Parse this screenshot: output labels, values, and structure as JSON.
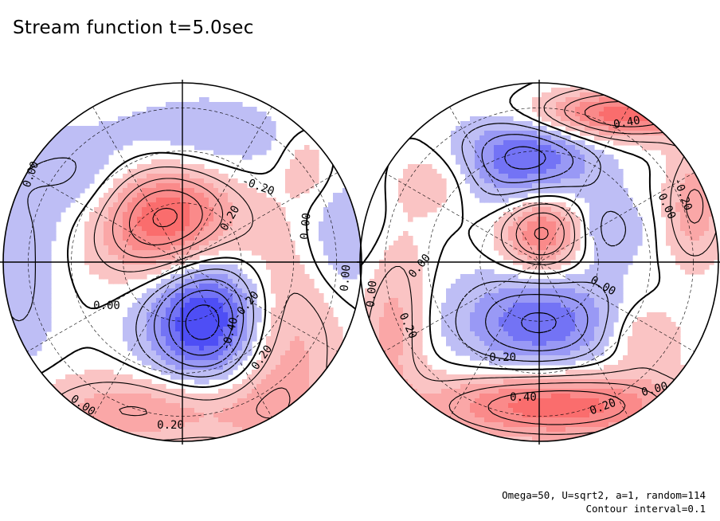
{
  "title": "Stream function t=5.0sec",
  "footer": {
    "params": "Omega=50, U=sqrt2, a=1, random=114",
    "contour_interval": "Contour interval=0.1"
  },
  "colors": {
    "positive": "#f08080",
    "positive_strong": "#e64646",
    "negative": "#8c8cf5",
    "negative_strong": "#1e1ee6",
    "line": "#000000"
  },
  "chart_data": [
    {
      "type": "contour",
      "projection": "polar-hemisphere",
      "panel": "left",
      "field": "stream function",
      "contour_interval": 0.1,
      "solid_contours": "non-negative",
      "dashed_contours": "negative",
      "extrema": [
        {
          "sign": "positive",
          "value": 0.45,
          "region": "upper-left of pole"
        },
        {
          "sign": "negative",
          "value": -0.45,
          "region": "lower-right of pole"
        },
        {
          "sign": "positive",
          "value": 0.25,
          "region": "southern rim band"
        },
        {
          "sign": "negative",
          "value": -0.15,
          "region": "northern rim"
        }
      ],
      "contour_labels": [
        "0.00",
        "-0.20",
        "0.20",
        "0.00",
        "0.00",
        "0.00",
        "-0.20",
        "-0.40",
        "0.20",
        "0.00",
        "0.20"
      ]
    },
    {
      "type": "contour",
      "projection": "polar-hemisphere",
      "panel": "right",
      "field": "stream function",
      "contour_interval": 0.1,
      "solid_contours": "non-negative",
      "dashed_contours": "negative",
      "extrema": [
        {
          "sign": "positive",
          "value": 0.35,
          "region": "near pole"
        },
        {
          "sign": "negative",
          "value": -0.35,
          "region": "upper"
        },
        {
          "sign": "negative",
          "value": -0.3,
          "region": "lower"
        },
        {
          "sign": "positive",
          "value": 0.45,
          "region": "southern rim band"
        },
        {
          "sign": "positive",
          "value": 0.4,
          "region": "northern rim"
        }
      ],
      "contour_labels": [
        "0.40",
        "0.00",
        "-0.20",
        "0.00",
        "0.00",
        "0.00",
        "-0.20",
        "0.20",
        "0.40",
        "0.20",
        "0.00"
      ]
    }
  ]
}
